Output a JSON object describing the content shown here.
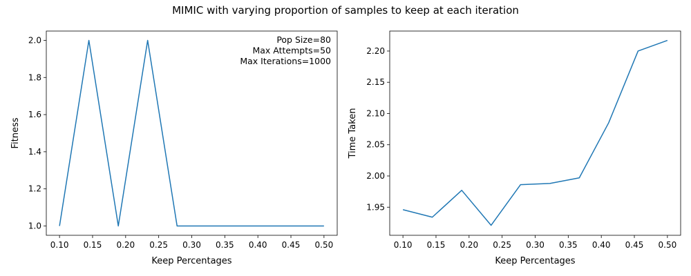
{
  "suptitle": "MIMIC with varying proportion of samples to keep at each iteration",
  "colors": {
    "line": "#1f77b4",
    "axes": "#000000",
    "background": "#ffffff"
  },
  "chart_data": [
    {
      "type": "line",
      "xlabel": "Keep Percentages",
      "ylabel": "Fitness",
      "xlim": [
        0.08,
        0.52
      ],
      "ylim": [
        0.95,
        2.05
      ],
      "xticks": [
        0.1,
        0.15,
        0.2,
        0.25,
        0.3,
        0.35,
        0.4,
        0.45,
        0.5
      ],
      "xtick_labels": [
        "0.10",
        "0.15",
        "0.20",
        "0.25",
        "0.30",
        "0.35",
        "0.40",
        "0.45",
        "0.50"
      ],
      "yticks": [
        1.0,
        1.2,
        1.4,
        1.6,
        1.8,
        2.0
      ],
      "ytick_labels": [
        "1.0",
        "1.2",
        "1.4",
        "1.6",
        "1.8",
        "2.0"
      ],
      "annotation_lines": [
        "Pop Size=80",
        "Max Attempts=50",
        "Max Iterations=1000"
      ],
      "annotation_position": "top-right",
      "series": [
        {
          "name": "Fitness",
          "x": [
            0.1,
            0.1444,
            0.1889,
            0.2333,
            0.2778,
            0.3222,
            0.3667,
            0.4111,
            0.4556,
            0.5
          ],
          "y": [
            1,
            2,
            1,
            2,
            1,
            1,
            1,
            1,
            1,
            1
          ]
        }
      ]
    },
    {
      "type": "line",
      "xlabel": "Keep Percentages",
      "ylabel": "Time Taken",
      "xlim": [
        0.08,
        0.52
      ],
      "ylim": [
        1.905,
        2.232
      ],
      "xticks": [
        0.1,
        0.15,
        0.2,
        0.25,
        0.3,
        0.35,
        0.4,
        0.45,
        0.5
      ],
      "xtick_labels": [
        "0.10",
        "0.15",
        "0.20",
        "0.25",
        "0.30",
        "0.35",
        "0.40",
        "0.45",
        "0.50"
      ],
      "yticks": [
        1.95,
        2.0,
        2.05,
        2.1,
        2.15,
        2.2
      ],
      "ytick_labels": [
        "1.95",
        "2.00",
        "2.05",
        "2.10",
        "2.15",
        "2.20"
      ],
      "annotation_lines": [],
      "series": [
        {
          "name": "Time Taken",
          "x": [
            0.1,
            0.1444,
            0.1889,
            0.2333,
            0.2778,
            0.3222,
            0.3667,
            0.4111,
            0.4556,
            0.5
          ],
          "y": [
            1.946,
            1.934,
            1.977,
            1.921,
            1.986,
            1.988,
            1.997,
            2.085,
            2.2,
            2.217
          ]
        }
      ]
    }
  ]
}
